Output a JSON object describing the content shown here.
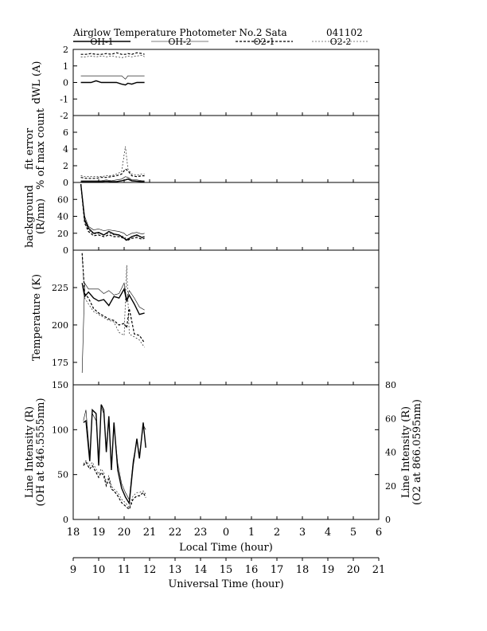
{
  "header": {
    "title": "Airglow Temperature Photometer No.2  Sata",
    "date": "041102"
  },
  "legend": [
    {
      "name": "OH-1",
      "color": "#000",
      "dash": "",
      "width": 1.4
    },
    {
      "name": "OH-2",
      "color": "#000",
      "dash": "",
      "width": 0.6
    },
    {
      "name": "O2-1",
      "color": "#000",
      "dash": "3,2",
      "width": 1.2
    },
    {
      "name": "O2-2",
      "color": "#000",
      "dash": "2,2",
      "width": 0.6
    }
  ],
  "chart_data": [
    {
      "type": "line",
      "ylabel": "dWL  (A)",
      "ylim": [
        -2,
        2
      ],
      "yticks": [
        "-2",
        "-1",
        "0",
        "1",
        "2"
      ],
      "x": [
        18.3,
        18.5,
        18.7,
        18.9,
        19.1,
        19.3,
        19.5,
        19.7,
        19.9,
        20.05,
        20.15,
        20.3,
        20.5,
        20.7,
        20.8
      ],
      "series": [
        {
          "name": "OH-1",
          "values": [
            0,
            0,
            0,
            0.1,
            0,
            0,
            0,
            0,
            -0.1,
            -0.15,
            -0.05,
            -0.1,
            0,
            0,
            0
          ]
        },
        {
          "name": "OH-2",
          "values": [
            0.4,
            0.4,
            0.4,
            0.4,
            0.4,
            0.4,
            0.4,
            0.4,
            0.4,
            0.2,
            0.4,
            0.4,
            0.4,
            0.4,
            0.4
          ]
        },
        {
          "name": "O2-1",
          "values": [
            1.7,
            1.7,
            1.75,
            1.7,
            1.7,
            1.75,
            1.7,
            1.8,
            1.7,
            1.7,
            1.75,
            1.7,
            1.8,
            1.75,
            1.7
          ]
        },
        {
          "name": "O2-2",
          "values": [
            1.55,
            1.55,
            1.6,
            1.55,
            1.6,
            1.55,
            1.6,
            1.55,
            1.5,
            1.55,
            1.6,
            1.55,
            1.6,
            1.65,
            1.55
          ]
        }
      ]
    },
    {
      "type": "line",
      "ylabel": [
        "fit error",
        "% of max count"
      ],
      "ylim": [
        0,
        8
      ],
      "yticks": [
        "0",
        "2",
        "4",
        "6"
      ],
      "x": [
        18.3,
        18.5,
        18.7,
        18.9,
        19.1,
        19.3,
        19.5,
        19.7,
        19.9,
        20.05,
        20.15,
        20.3,
        20.5,
        20.7,
        20.8
      ],
      "series": [
        {
          "name": "OH-1",
          "values": [
            0.1,
            0.1,
            0.1,
            0.1,
            0.1,
            0.15,
            0.1,
            0.1,
            0.2,
            0.3,
            0.4,
            0.2,
            0.15,
            0.1,
            0.1
          ]
        },
        {
          "name": "OH-2",
          "values": [
            0.2,
            0.2,
            0.2,
            0.2,
            0.2,
            0.3,
            0.2,
            0.3,
            0.4,
            0.7,
            0.6,
            0.3,
            0.3,
            0.2,
            0.2
          ]
        },
        {
          "name": "O2-1",
          "values": [
            0.6,
            0.5,
            0.5,
            0.5,
            0.6,
            0.6,
            0.7,
            0.8,
            1.0,
            1.6,
            1.4,
            0.8,
            0.7,
            0.8,
            0.8
          ]
        },
        {
          "name": "O2-2",
          "values": [
            0.8,
            0.7,
            0.7,
            0.7,
            0.7,
            0.8,
            0.8,
            1.0,
            1.3,
            4.3,
            1.6,
            1.0,
            0.9,
            1.0,
            1.0
          ]
        }
      ]
    },
    {
      "type": "line",
      "ylabel": [
        "background",
        "(R/nm)"
      ],
      "ylim": [
        0,
        80
      ],
      "yticks": [
        "0",
        "20",
        "40",
        "60"
      ],
      "x": [
        18.3,
        18.45,
        18.6,
        18.8,
        19.0,
        19.2,
        19.4,
        19.6,
        19.8,
        20.0,
        20.1,
        20.3,
        20.5,
        20.7,
        20.8
      ],
      "series": [
        {
          "name": "OH-1",
          "values": [
            78,
            36,
            26,
            20,
            21,
            18,
            22,
            19,
            18,
            14,
            12,
            16,
            18,
            15,
            16
          ]
        },
        {
          "name": "OH-2",
          "values": [
            78,
            40,
            28,
            24,
            25,
            23,
            24,
            23,
            22,
            20,
            17,
            20,
            21,
            19,
            20
          ]
        },
        {
          "name": "O2-1",
          "values": [
            78,
            32,
            22,
            17,
            18,
            16,
            18,
            16,
            16,
            14,
            11,
            14,
            15,
            13,
            14
          ]
        },
        {
          "name": "O2-2",
          "values": [
            78,
            34,
            24,
            19,
            20,
            18,
            20,
            18,
            18,
            16,
            13,
            16,
            17,
            15,
            17
          ]
        }
      ]
    },
    {
      "type": "line",
      "ylabel": "Temperature  (K)",
      "ylim": [
        160,
        250
      ],
      "yticks": [
        "175",
        "200",
        "225"
      ],
      "x": [
        18.35,
        18.45,
        18.6,
        18.8,
        19.0,
        19.2,
        19.4,
        19.6,
        19.8,
        20.0,
        20.1,
        20.2,
        20.4,
        20.6,
        20.8
      ],
      "series": [
        {
          "name": "OH-1",
          "values": [
            228,
            219,
            222,
            218,
            216,
            217,
            213,
            219,
            218,
            224,
            216,
            220,
            214,
            207,
            208
          ]
        },
        {
          "name": "OH-2",
          "values": [
            168,
            228,
            224,
            224,
            224,
            221,
            223,
            220,
            221,
            228,
            217,
            223,
            218,
            212,
            210
          ]
        },
        {
          "name": "O2-1",
          "values": [
            248,
            221,
            218,
            211,
            208,
            206,
            204,
            203,
            200,
            201,
            198,
            211,
            194,
            193,
            188
          ]
        },
        {
          "name": "O2-2",
          "values": [
            248,
            218,
            214,
            209,
            207,
            205,
            203,
            202,
            195,
            193,
            240,
            194,
            192,
            190,
            185
          ]
        }
      ]
    },
    {
      "type": "line",
      "ylabel": [
        "Line Intensity (R)",
        "(OH at 846.5555nm)"
      ],
      "ylabel_right": [
        "Line Intensity (R)",
        "(O2 at 866.0595nm)"
      ],
      "ylim": [
        0,
        150
      ],
      "ylim_right": [
        0,
        80
      ],
      "yticks": [
        "0",
        "50",
        "100",
        "150"
      ],
      "yticks_right": [
        "0",
        "20",
        "40",
        "60",
        "80"
      ],
      "x": [
        18.4,
        18.5,
        18.65,
        18.75,
        18.9,
        19.0,
        19.1,
        19.2,
        19.3,
        19.4,
        19.5,
        19.6,
        19.75,
        19.9,
        20.05,
        20.2,
        20.35,
        20.5,
        20.6,
        20.75,
        20.85
      ],
      "series": [
        {
          "name": "OH-1",
          "axis": "left",
          "values": [
            108,
            110,
            65,
            122,
            118,
            60,
            128,
            122,
            75,
            115,
            55,
            108,
            55,
            35,
            25,
            18,
            60,
            90,
            68,
            108,
            80
          ]
        },
        {
          "name": "OH-2",
          "axis": "left",
          "values": [
            110,
            122,
            70,
            118,
            110,
            68,
            125,
            118,
            80,
            112,
            60,
            105,
            62,
            40,
            30,
            22,
            65,
            88,
            72,
            105,
            100
          ]
        },
        {
          "name": "O2-1",
          "axis": "right",
          "values": [
            32,
            34,
            30,
            32,
            28,
            25,
            28,
            26,
            20,
            24,
            18,
            17,
            14,
            10,
            8,
            6,
            12,
            14,
            14,
            16,
            13
          ]
        },
        {
          "name": "O2-2",
          "axis": "right",
          "values": [
            33,
            35,
            32,
            34,
            30,
            27,
            30,
            28,
            22,
            26,
            20,
            18,
            16,
            12,
            10,
            7,
            14,
            16,
            16,
            17,
            15
          ]
        }
      ]
    }
  ],
  "xaxis_local": {
    "label": "Local Time (hour)",
    "ticks": [
      "18",
      "19",
      "20",
      "21",
      "22",
      "23",
      "0",
      "1",
      "2",
      "3",
      "4",
      "5",
      "6"
    ]
  },
  "xaxis_ut": {
    "label": "Universal Time (hour)",
    "ticks": [
      "9",
      "10",
      "11",
      "12",
      "13",
      "14",
      "15",
      "16",
      "17",
      "18",
      "19",
      "20",
      "21"
    ]
  }
}
